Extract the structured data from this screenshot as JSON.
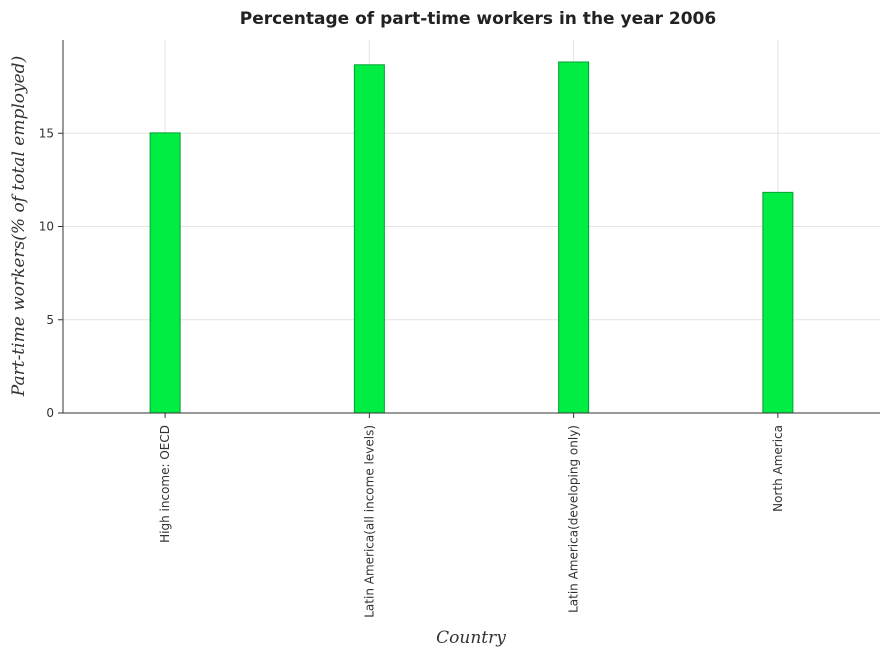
{
  "chart_data": {
    "type": "bar",
    "title": "Percentage of part-time workers in the year 2006",
    "xlabel": "Country",
    "ylabel": "Part-time workers(% of total employed)",
    "categories": [
      "High income: OECD",
      "Latin America(all income levels)",
      "Latin America(developing only)",
      "North America"
    ],
    "values": [
      15.02,
      18.67,
      18.82,
      11.83
    ],
    "ylim": [
      0,
      20
    ],
    "yticks": [
      0,
      5,
      10,
      15
    ],
    "grid": true,
    "bar_color": "#00ee44",
    "bar_edge_color": "#00a030"
  }
}
